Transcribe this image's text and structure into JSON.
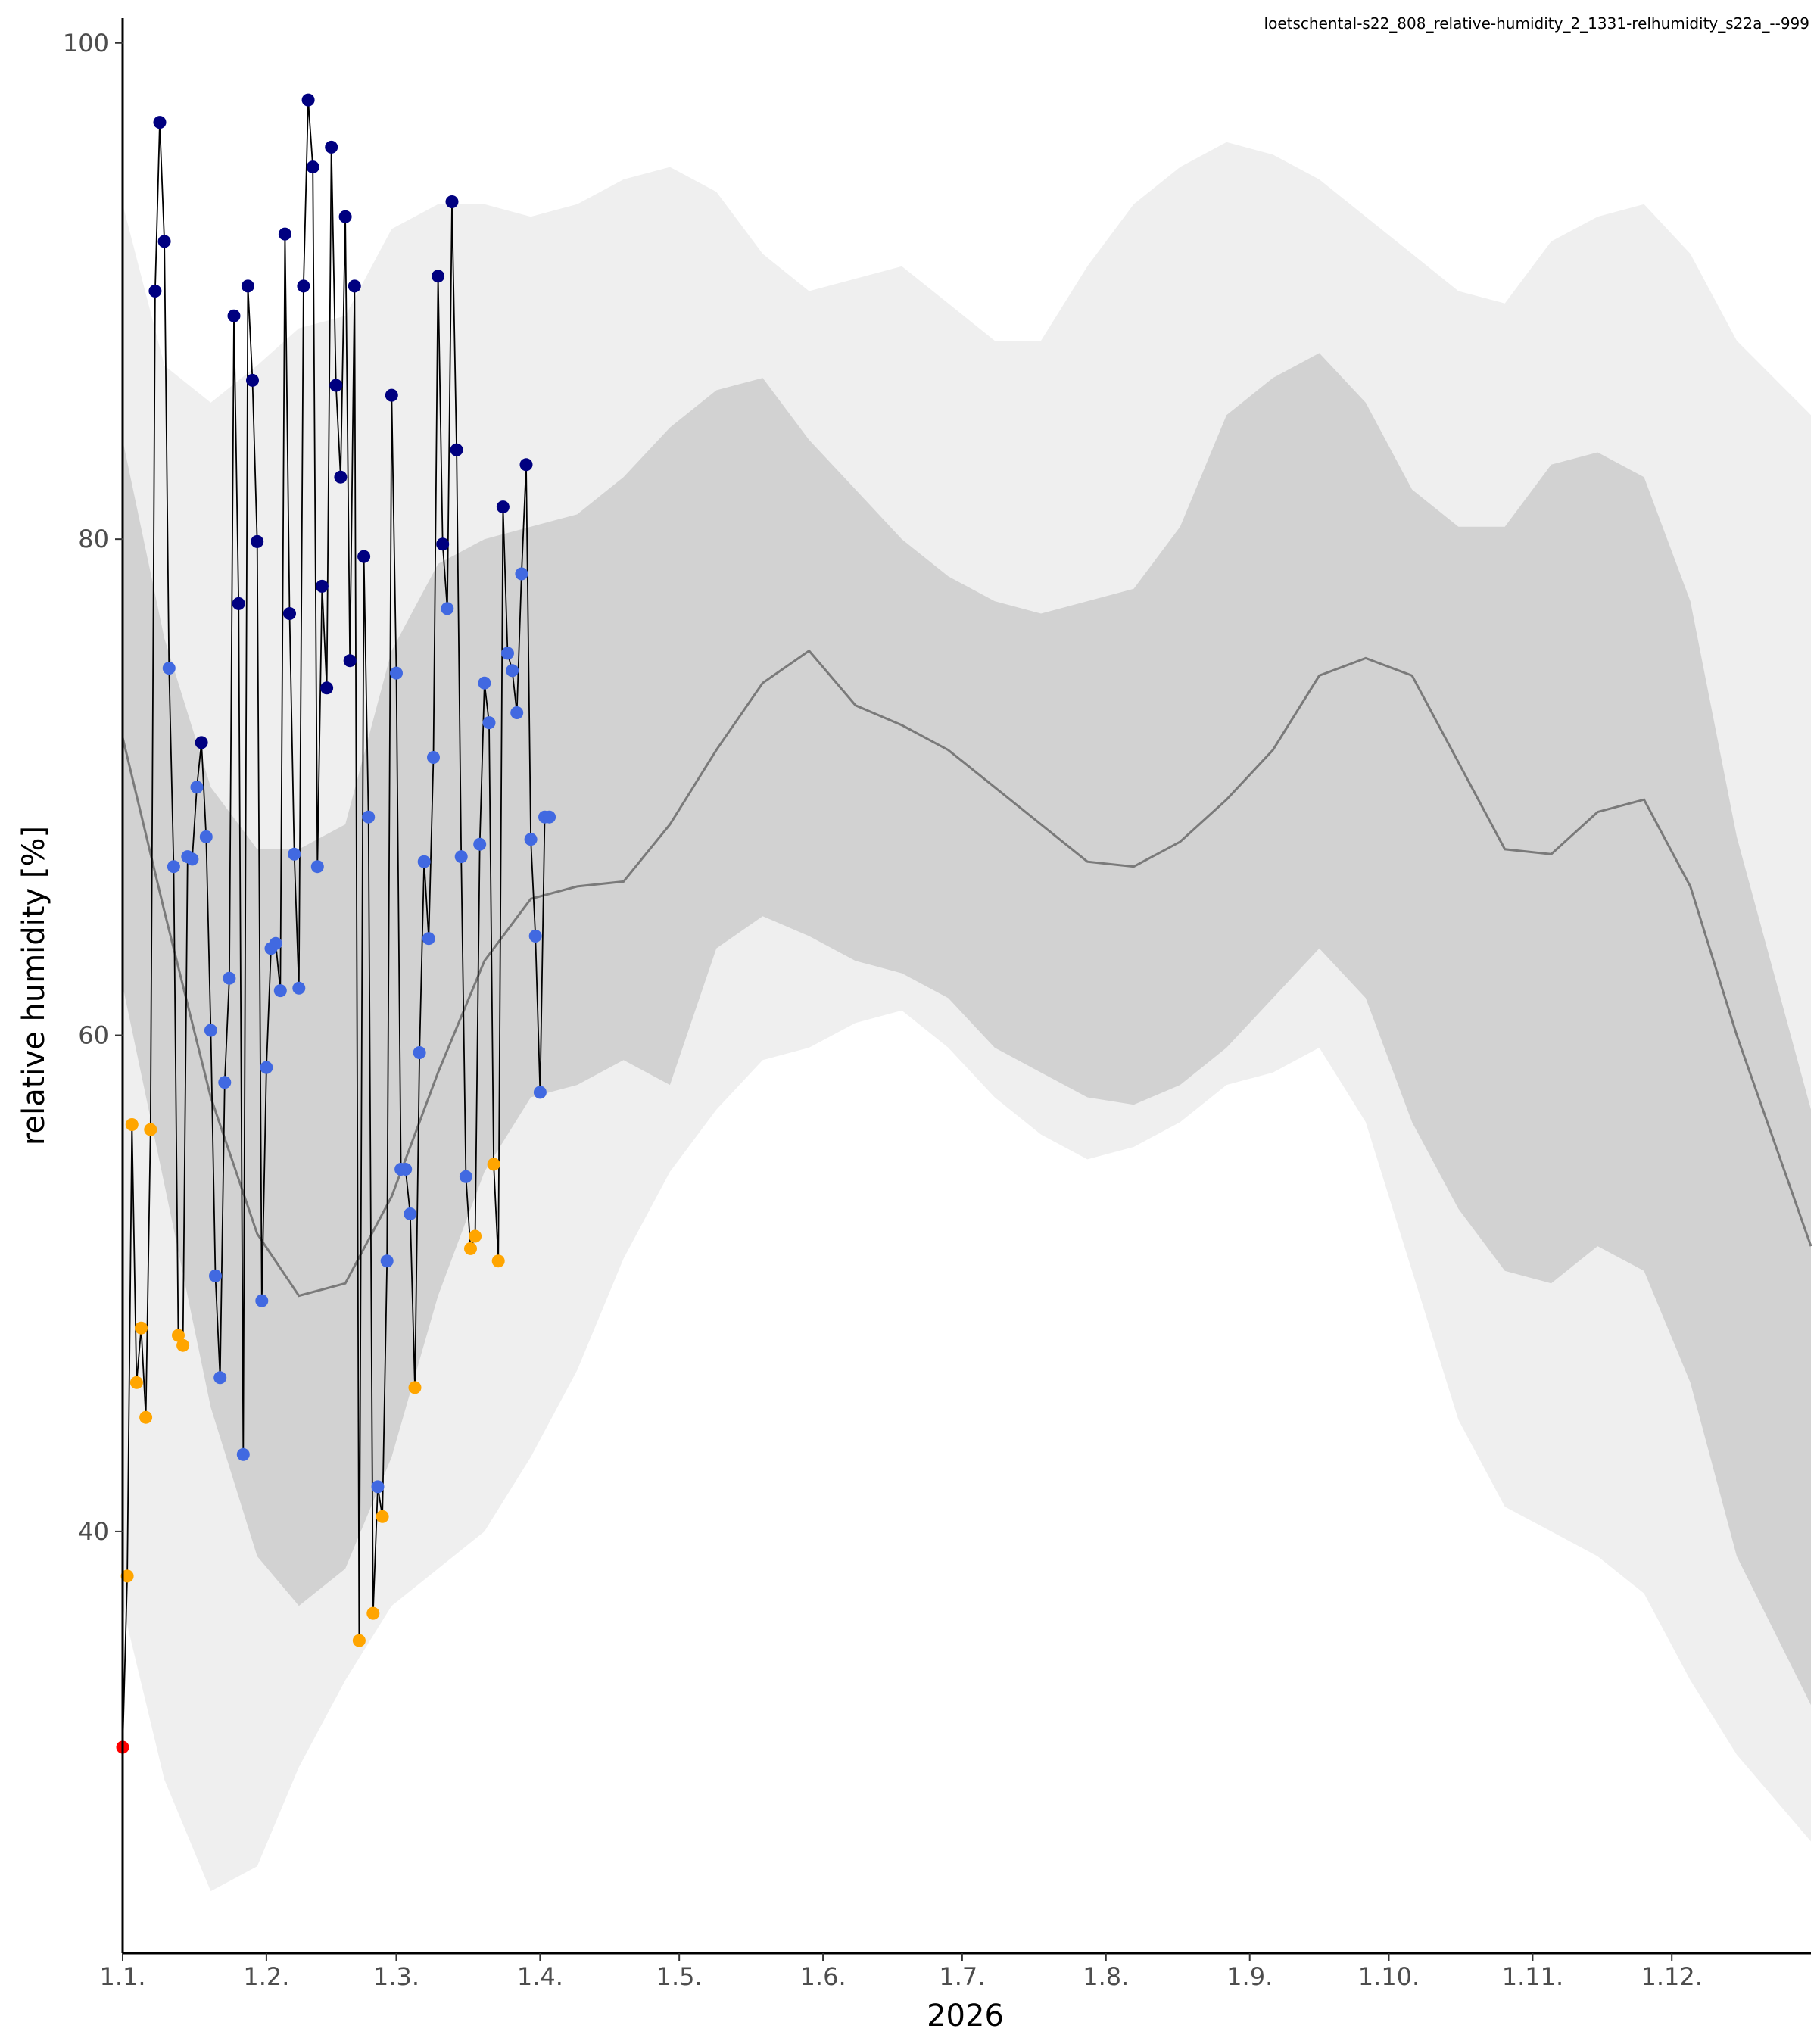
{
  "chart_data": {
    "type": "line",
    "subtitle": "loetschental-s22_808_relative-humidity_2_1331-relhumidity_s22a_--999",
    "xlabel": "2026",
    "ylabel": "relative humidity [%]",
    "xlim": [
      "2026-01-01",
      "2026-12-31"
    ],
    "ylim": [
      23,
      101
    ],
    "x_ticks": [
      {
        "label": "1.1.",
        "date": "2026-01-01"
      },
      {
        "label": "1.2.",
        "date": "2026-02-01"
      },
      {
        "label": "1.3.",
        "date": "2026-03-01"
      },
      {
        "label": "1.4.",
        "date": "2026-04-01"
      },
      {
        "label": "1.5.",
        "date": "2026-05-01"
      },
      {
        "label": "1.6.",
        "date": "2026-06-01"
      },
      {
        "label": "1.7.",
        "date": "2026-07-01"
      },
      {
        "label": "1.8.",
        "date": "2026-08-01"
      },
      {
        "label": "1.9.",
        "date": "2026-09-01"
      },
      {
        "label": "1.10.",
        "date": "2026-10-01"
      },
      {
        "label": "1.11.",
        "date": "2026-11-01"
      },
      {
        "label": "1.12.",
        "date": "2026-12-01"
      }
    ],
    "y_ticks": [
      40,
      60,
      80,
      100
    ],
    "grid": false,
    "bands": {
      "x": [
        "2026-01-01",
        "2026-01-10",
        "2026-01-20",
        "2026-01-30",
        "2026-02-08",
        "2026-02-18",
        "2026-02-28",
        "2026-03-10",
        "2026-03-20",
        "2026-03-30",
        "2026-04-09",
        "2026-04-19",
        "2026-04-29",
        "2026-05-09",
        "2026-05-19",
        "2026-05-29",
        "2026-06-08",
        "2026-06-18",
        "2026-06-28",
        "2026-07-08",
        "2026-07-18",
        "2026-07-28",
        "2026-08-07",
        "2026-08-17",
        "2026-08-27",
        "2026-09-06",
        "2026-09-16",
        "2026-09-26",
        "2026-10-06",
        "2026-10-16",
        "2026-10-26",
        "2026-11-05",
        "2026-11-15",
        "2026-11-25",
        "2026-12-05",
        "2026-12-15",
        "2026-12-31"
      ],
      "mean": [
        72.0,
        65.0,
        57.5,
        52.0,
        49.5,
        50.0,
        53.5,
        58.5,
        63.0,
        65.5,
        66.0,
        66.2,
        68.5,
        71.5,
        74.2,
        75.5,
        73.3,
        72.5,
        71.5,
        70.0,
        68.5,
        67.0,
        66.8,
        67.8,
        69.5,
        71.5,
        74.5,
        75.2,
        74.5,
        71.0,
        67.5,
        67.3,
        69.0,
        69.5,
        66.0,
        60.0,
        51.5
      ],
      "p25": [
        62.0,
        54.0,
        45.0,
        39.0,
        37.0,
        38.5,
        43.0,
        49.5,
        54.5,
        57.5,
        58.0,
        59.0,
        58.0,
        63.5,
        64.8,
        64.0,
        63.0,
        62.5,
        61.5,
        59.5,
        58.5,
        57.5,
        57.2,
        58.0,
        59.5,
        61.5,
        63.5,
        61.5,
        56.5,
        53.0,
        50.5,
        50.0,
        51.5,
        50.5,
        46.0,
        39.0,
        33.0
      ],
      "p75": [
        84.0,
        76.0,
        70.0,
        67.5,
        67.5,
        68.5,
        75.5,
        79.0,
        80.0,
        80.5,
        81.0,
        82.5,
        84.5,
        86.0,
        86.5,
        84.0,
        82.0,
        80.0,
        78.5,
        77.5,
        77.0,
        77.5,
        78.0,
        80.5,
        85.0,
        86.5,
        87.5,
        85.5,
        82.0,
        80.5,
        80.5,
        83.0,
        83.5,
        82.5,
        77.5,
        68.0,
        57.0
      ],
      "p05": [
        37.0,
        30.0,
        25.5,
        26.5,
        30.5,
        34.0,
        37.0,
        38.5,
        40.0,
        43.0,
        46.5,
        51.0,
        54.5,
        57.0,
        59.0,
        59.5,
        60.5,
        61.0,
        59.5,
        57.5,
        56.0,
        55.0,
        55.5,
        56.5,
        58.0,
        58.5,
        59.5,
        56.5,
        50.5,
        44.5,
        41.0,
        40.0,
        39.0,
        37.5,
        34.0,
        31.0,
        27.5
      ],
      "p95": [
        93.5,
        87.0,
        85.5,
        87.0,
        88.5,
        89.0,
        92.5,
        93.5,
        93.5,
        93.0,
        93.5,
        94.5,
        95.0,
        94.0,
        91.5,
        90.0,
        90.5,
        91.0,
        89.5,
        88.0,
        88.0,
        91.0,
        93.5,
        95.0,
        96.0,
        95.5,
        94.5,
        93.0,
        91.5,
        90.0,
        89.5,
        92.0,
        93.0,
        93.5,
        91.5,
        88.0,
        85.0
      ]
    },
    "series": [
      {
        "x": [
          "2026-01-01",
          "2026-01-02",
          "2026-01-03",
          "2026-01-04",
          "2026-01-05",
          "2026-01-06",
          "2026-01-07",
          "2026-01-08",
          "2026-01-09",
          "2026-01-10",
          "2026-01-11",
          "2026-01-12",
          "2026-01-13",
          "2026-01-14",
          "2026-01-15",
          "2026-01-16",
          "2026-01-17",
          "2026-01-18",
          "2026-01-19",
          "2026-01-20",
          "2026-01-21",
          "2026-01-22",
          "2026-01-23",
          "2026-01-24",
          "2026-01-25",
          "2026-01-26",
          "2026-01-27",
          "2026-01-28",
          "2026-01-29",
          "2026-01-30",
          "2026-01-31",
          "2026-02-01",
          "2026-02-02",
          "2026-02-03",
          "2026-02-04",
          "2026-02-05",
          "2026-02-06",
          "2026-02-07",
          "2026-02-08",
          "2026-02-09",
          "2026-02-10",
          "2026-02-11",
          "2026-02-12",
          "2026-02-13",
          "2026-02-14",
          "2026-02-15",
          "2026-02-16",
          "2026-02-17",
          "2026-02-18",
          "2026-02-19",
          "2026-02-20",
          "2026-02-21",
          "2026-02-22",
          "2026-02-23",
          "2026-02-24",
          "2026-02-25",
          "2026-02-26",
          "2026-02-27",
          "2026-02-28",
          "2026-03-01",
          "2026-03-02",
          "2026-03-03",
          "2026-03-04",
          "2026-03-05",
          "2026-03-06",
          "2026-03-07",
          "2026-03-08",
          "2026-03-09",
          "2026-03-10",
          "2026-03-11",
          "2026-03-12",
          "2026-03-13",
          "2026-03-14",
          "2026-03-15",
          "2026-03-16",
          "2026-03-17",
          "2026-03-18",
          "2026-03-19",
          "2026-03-20",
          "2026-03-21",
          "2026-03-22",
          "2026-03-23",
          "2026-03-24",
          "2026-03-25",
          "2026-03-26",
          "2026-03-27",
          "2026-03-28",
          "2026-03-29",
          "2026-03-30",
          "2026-03-31",
          "2026-04-01",
          "2026-04-02",
          "2026-04-03"
        ],
        "values": [
          31.3,
          38.2,
          56.4,
          46.0,
          48.2,
          44.6,
          56.2,
          90.0,
          96.8,
          92.0,
          74.8,
          66.8,
          47.9,
          47.5,
          67.2,
          67.1,
          70.0,
          71.8,
          68.0,
          60.2,
          50.3,
          46.2,
          58.1,
          62.3,
          89.0,
          77.4,
          43.1,
          90.2,
          86.4,
          79.9,
          49.3,
          58.7,
          63.5,
          63.7,
          61.8,
          92.3,
          77.0,
          67.3,
          61.9,
          90.2,
          97.7,
          95.0,
          66.8,
          78.1,
          74.0,
          95.8,
          86.2,
          82.5,
          93.0,
          75.1,
          90.2,
          35.6,
          79.3,
          68.8,
          36.7,
          41.8,
          40.6,
          50.9,
          85.8,
          74.6,
          54.6,
          54.6,
          52.8,
          45.8,
          59.3,
          67.0,
          63.9,
          71.2,
          90.6,
          79.8,
          77.2,
          93.6,
          83.6,
          67.2,
          54.3,
          51.4,
          51.9,
          67.7,
          74.2,
          72.6,
          54.8,
          50.9,
          81.3,
          75.4,
          74.7,
          73.0,
          78.6,
          83.0,
          67.9,
          64.0,
          57.7,
          68.8,
          68.8
        ]
      }
    ],
    "point_colors": {
      "below_p05": "#ff0000",
      "p05_p25": "#ffa500",
      "p25_p75": "#4169e1",
      "above_p75": "#000080"
    },
    "band_colors": {
      "outer": "#efefef",
      "inner": "#d2d2d2",
      "mean_line": "#7a7a7a",
      "obs_line": "#000000"
    }
  }
}
